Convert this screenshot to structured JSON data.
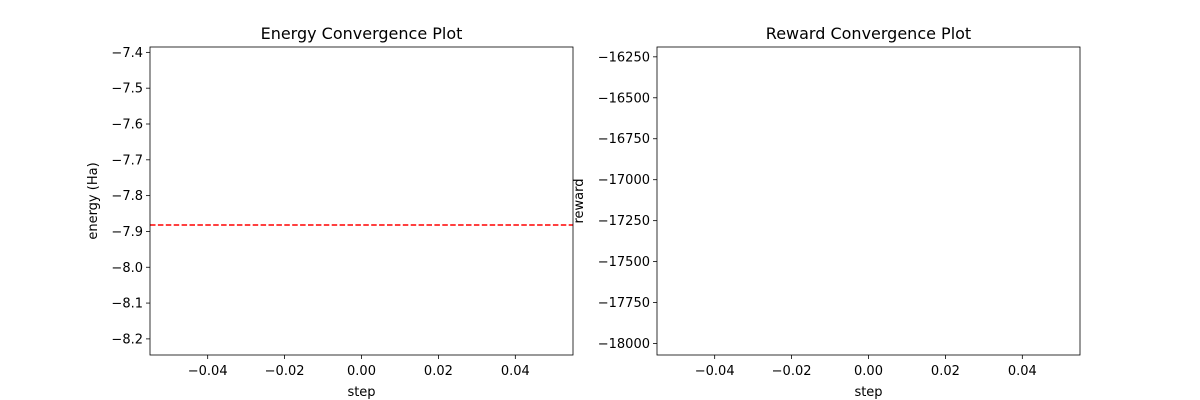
{
  "chart_data": [
    {
      "type": "line",
      "title": "Energy Convergence Plot",
      "xlabel": "step",
      "ylabel": "energy (Ha)",
      "xlim": [
        -0.055,
        0.055
      ],
      "ylim": [
        -8.245,
        -7.385
      ],
      "xticks": [
        -0.04,
        -0.02,
        0.0,
        0.02,
        0.04
      ],
      "xtick_labels": [
        "−0.04",
        "−0.02",
        "0.00",
        "0.02",
        "0.04"
      ],
      "yticks": [
        -7.4,
        -7.5,
        -7.6,
        -7.7,
        -7.8,
        -7.9,
        -8.0,
        -8.1,
        -8.2
      ],
      "ytick_labels": [
        "−7.4",
        "−7.5",
        "−7.6",
        "−7.7",
        "−7.8",
        "−7.9",
        "−8.0",
        "−8.1",
        "−8.2"
      ],
      "grid": false,
      "series": [],
      "reference_lines": [
        {
          "orientation": "horizontal",
          "y": -7.882,
          "style": "dashed",
          "color": "#ff0000"
        }
      ]
    },
    {
      "type": "line",
      "title": "Reward Convergence Plot",
      "xlabel": "step",
      "ylabel": "reward",
      "xlim": [
        -0.055,
        0.055
      ],
      "ylim": [
        -18070,
        -16190
      ],
      "xticks": [
        -0.04,
        -0.02,
        0.0,
        0.02,
        0.04
      ],
      "xtick_labels": [
        "−0.04",
        "−0.02",
        "0.00",
        "0.02",
        "0.04"
      ],
      "yticks": [
        -16250,
        -16500,
        -16750,
        -17000,
        -17250,
        -17500,
        -17750,
        -18000
      ],
      "ytick_labels": [
        "−16250",
        "−16500",
        "−16750",
        "−17000",
        "−17250",
        "−17500",
        "−17750",
        "−18000"
      ],
      "grid": false,
      "series": [],
      "reference_lines": []
    }
  ]
}
